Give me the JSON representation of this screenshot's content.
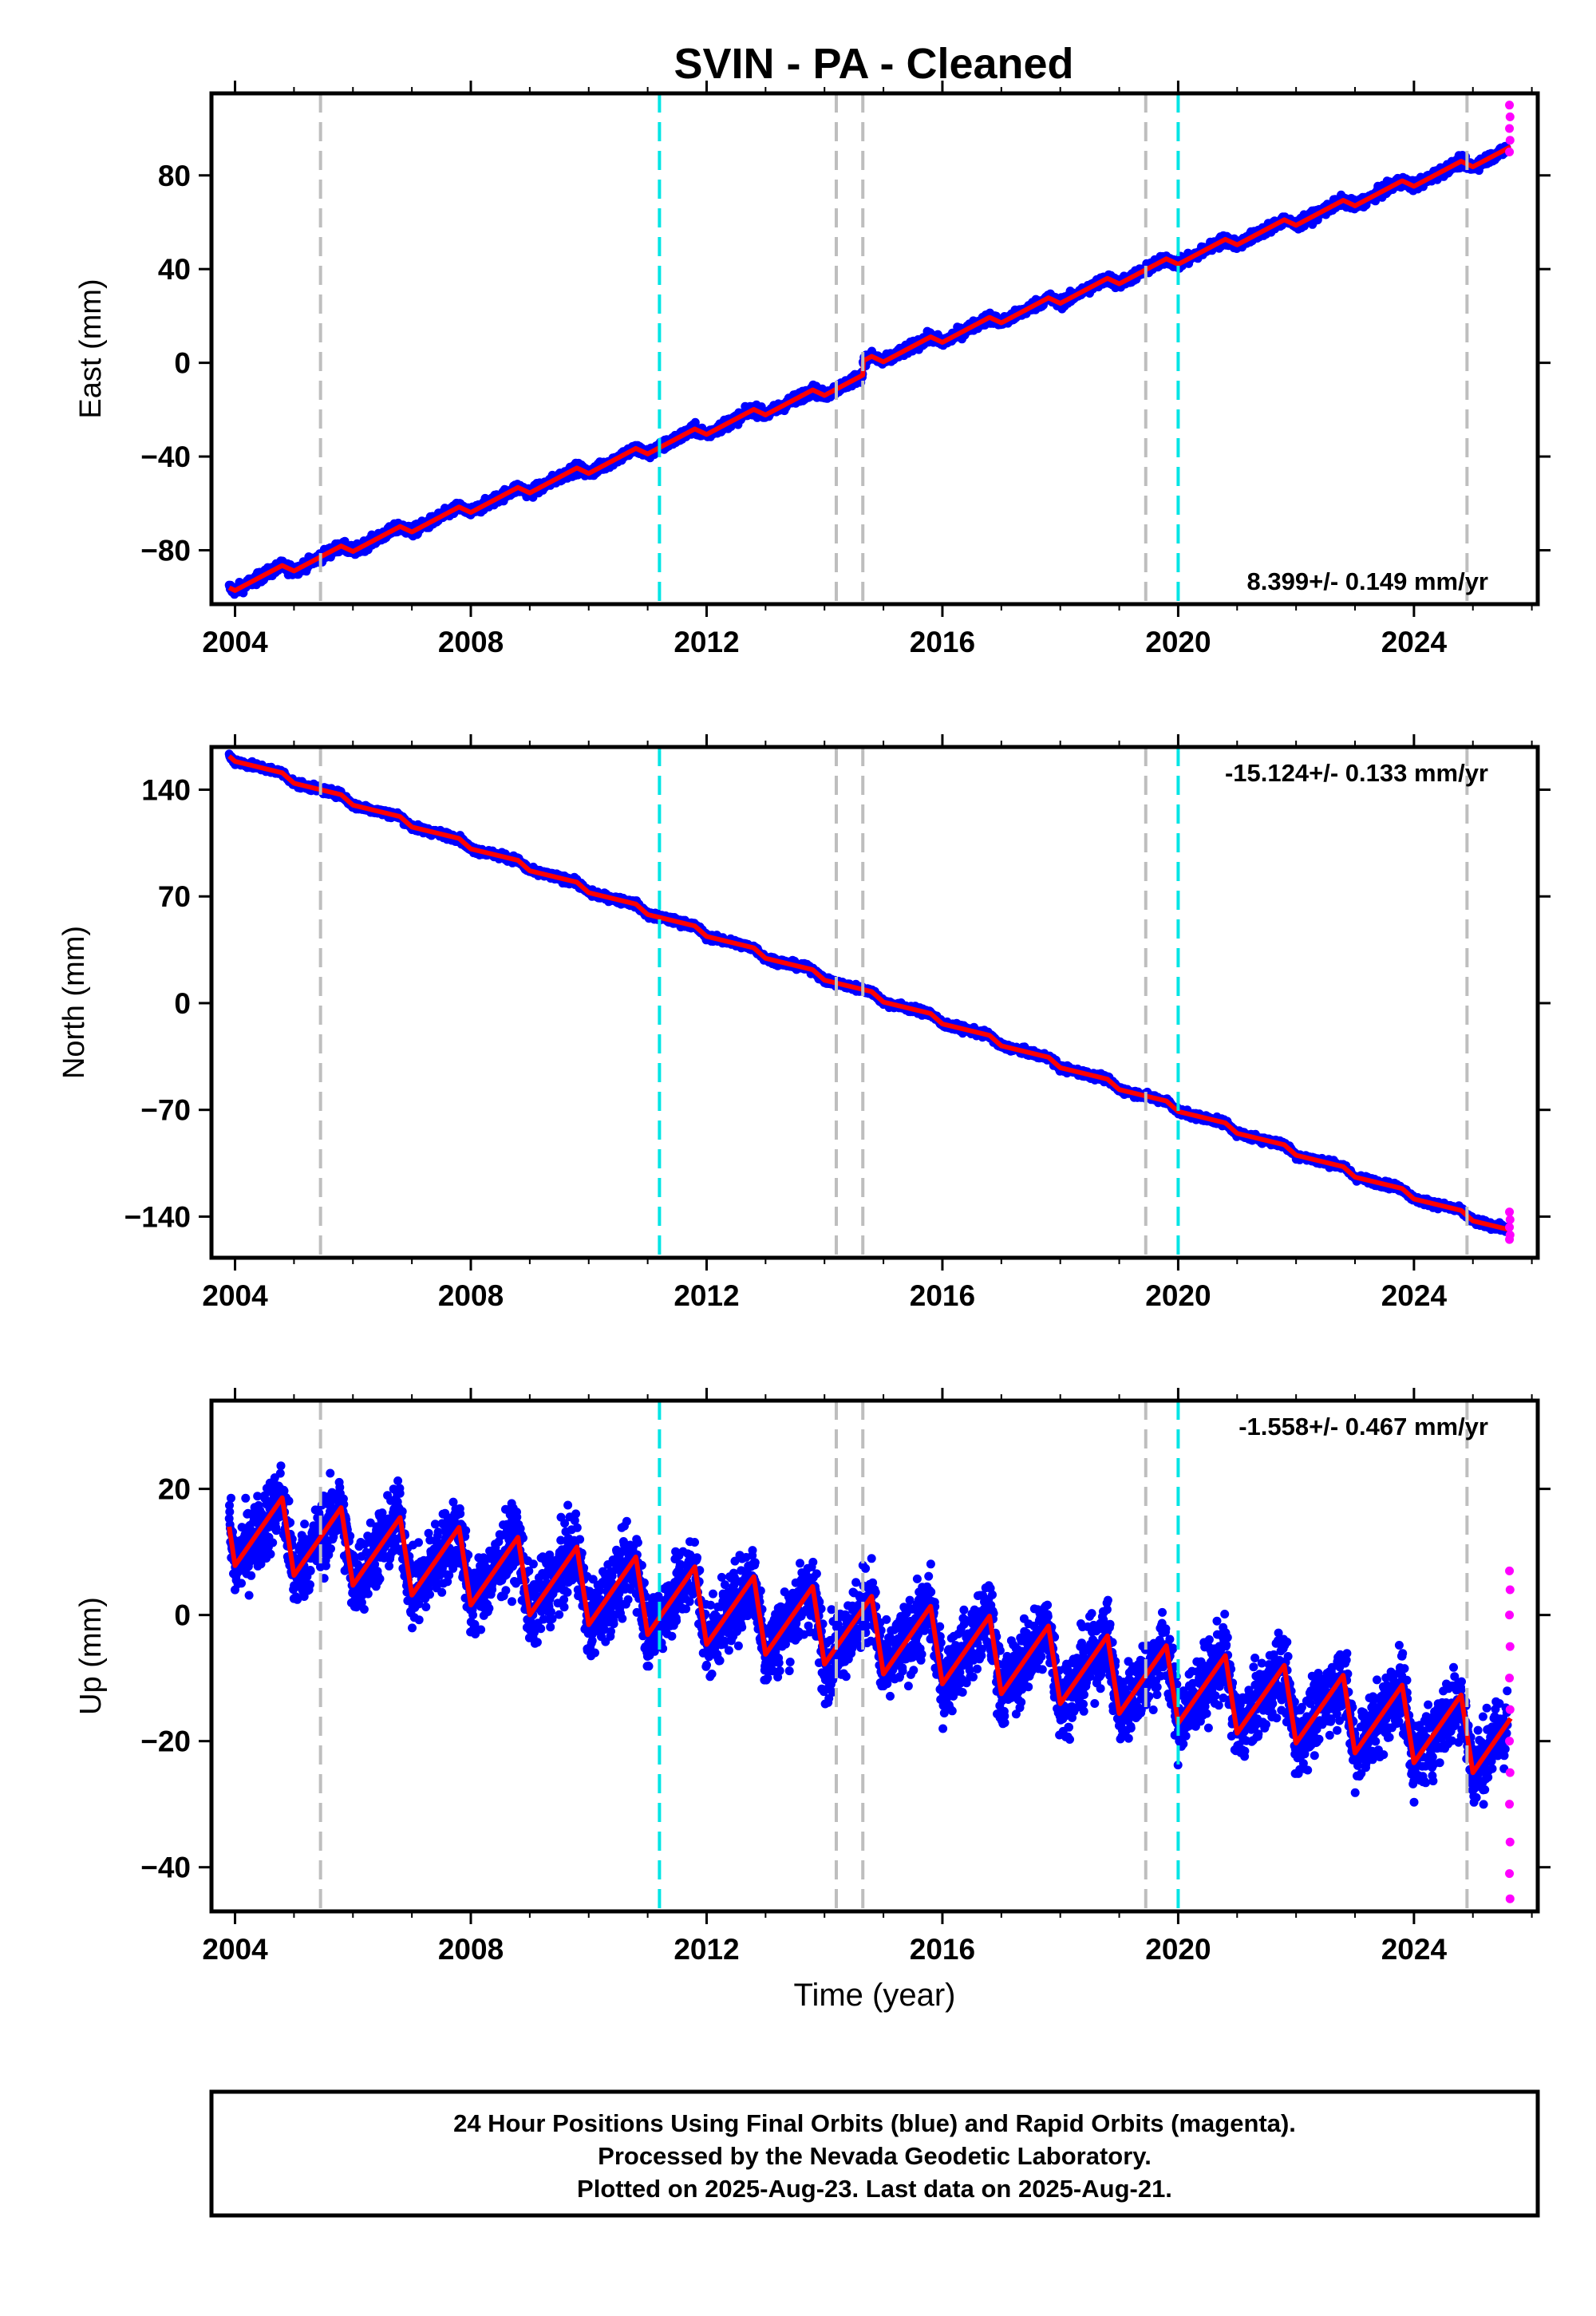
{
  "title": "SVIN  - PA - Cleaned",
  "colors": {
    "final_orbits": "#0000ff",
    "rapid_orbits": "#ff00ff",
    "model": "#ff0000",
    "event_gray": "#bebebe",
    "event_cyan": "#00e5e5"
  },
  "chart_data": [
    {
      "type": "scatter",
      "name": "east",
      "ylabel": "East (mm)",
      "xlabel": "",
      "xlim": [
        2003.6,
        2026.1
      ],
      "ylim": [
        -103,
        115
      ],
      "xticks": [
        2004,
        2008,
        2012,
        2016,
        2020,
        2024
      ],
      "yticks": [
        -80,
        -40,
        0,
        40,
        80
      ],
      "rate_label": "8.399+/- 0.149 mm/yr",
      "rate_position": "bottom-right",
      "rate_mm_per_yr": 8.399,
      "data_start": 2003.9,
      "data_end": 2025.64,
      "start_value": -93,
      "end_value": 88,
      "offsets": [
        {
          "x": 2014.65,
          "dy": 6
        }
      ],
      "seasonal_amp": 2,
      "rapid_values": [
        90,
        95,
        100,
        105,
        110
      ]
    },
    {
      "type": "scatter",
      "name": "north",
      "ylabel": "North (mm)",
      "xlabel": "",
      "xlim": [
        2003.6,
        2026.1
      ],
      "ylim": [
        -167,
        168
      ],
      "xticks": [
        2004,
        2008,
        2012,
        2016,
        2020,
        2024
      ],
      "yticks": [
        -140,
        -70,
        0,
        70,
        140
      ],
      "rate_label": "-15.124+/- 0.133 mm/yr",
      "rate_position": "top-right",
      "rate_mm_per_yr": -15.124,
      "data_start": 2003.9,
      "data_end": 2025.64,
      "start_value": 162,
      "end_value": -150,
      "offsets": [],
      "seasonal_amp": 2,
      "rapid_values": [
        -137,
        -142,
        -147,
        -152,
        -155
      ]
    },
    {
      "type": "scatter",
      "name": "up",
      "ylabel": "Up (mm)",
      "xlabel": "Time (year)",
      "xlim": [
        2003.6,
        2026.1
      ],
      "ylim": [
        -47,
        34
      ],
      "xticks": [
        2004,
        2008,
        2012,
        2016,
        2020,
        2024
      ],
      "yticks": [
        -40,
        -20,
        0,
        20
      ],
      "rate_label": "-1.558+/- 0.467 mm/yr",
      "rate_position": "top-right",
      "rate_mm_per_yr": -1.558,
      "data_start": 2003.9,
      "data_end": 2025.64,
      "start_value": 14,
      "end_value": -20,
      "offsets": [],
      "seasonal_amp": 6,
      "rapid_values": [
        7,
        4,
        0,
        -5,
        -10,
        -15,
        -20,
        -25,
        -30,
        -36,
        -41,
        -45
      ]
    }
  ],
  "events": {
    "gray": [
      2005.45,
      2014.2,
      2014.65,
      2019.45,
      2024.9
    ],
    "cyan": [
      2011.2,
      2020.0
    ]
  },
  "footer": {
    "line1": "24 Hour Positions Using Final Orbits (blue) and Rapid Orbits (magenta).",
    "line2": "Processed by the Nevada Geodetic Laboratory.",
    "line3": "Plotted on 2025-Aug-23. Last data on 2025-Aug-21."
  }
}
